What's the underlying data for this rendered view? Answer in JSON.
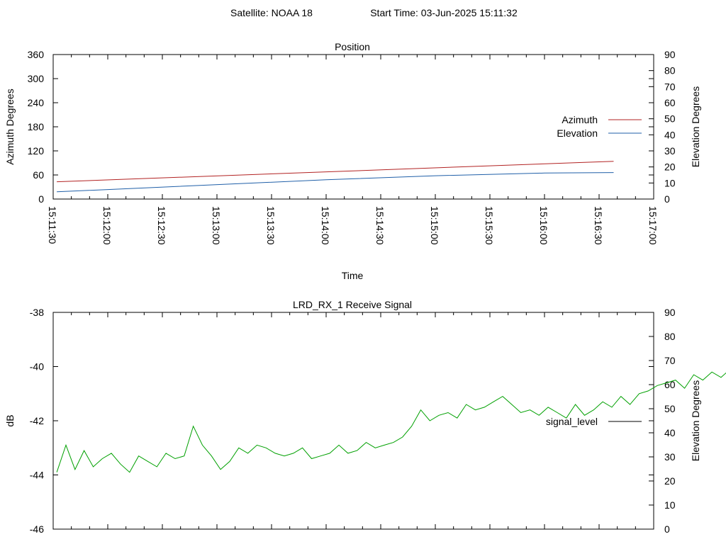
{
  "header": {
    "satellite": "Satellite: NOAA 18",
    "start_time": "Start Time: 03-Jun-2025 15:11:32"
  },
  "colors": {
    "azimuth": "#b22222",
    "elevation": "#1f5fa8",
    "signal": "#00a000",
    "legend_signal": "#000000"
  },
  "chart_data": [
    {
      "type": "line",
      "title": "Position",
      "xlabel": "Time",
      "ylabel": "Azimuth Degrees",
      "y2label": "Elevation Degrees",
      "ylim": [
        0,
        360
      ],
      "y2lim": [
        0,
        90
      ],
      "yticks": [
        "0",
        "60",
        "120",
        "180",
        "240",
        "300",
        "360"
      ],
      "y2ticks": [
        "0",
        "10",
        "20",
        "30",
        "40",
        "50",
        "60",
        "70",
        "80",
        "90"
      ],
      "xlim": [
        "15:11:30",
        "15:17:00"
      ],
      "xticks": [
        "15:11:30",
        "15:12:00",
        "15:12:30",
        "15:13:00",
        "15:13:30",
        "15:14:00",
        "15:14:30",
        "15:15:00",
        "15:15:30",
        "15:16:00",
        "15:16:30",
        "15:17:00"
      ],
      "legend_position": "right",
      "series": [
        {
          "name": "Azimuth",
          "axis": "y",
          "x": [
            "15:11:32",
            "15:16:38"
          ],
          "values": [
            43,
            94
          ]
        },
        {
          "name": "Elevation",
          "axis": "y2",
          "x": [
            "15:11:32",
            "15:14:00",
            "15:15:00",
            "15:16:00",
            "15:16:38"
          ],
          "values": [
            4.5,
            12,
            14.5,
            16.2,
            16.5
          ]
        }
      ]
    },
    {
      "type": "line",
      "title": "LRD_RX_1 Receive Signal",
      "ylabel": "dB",
      "y2label": "Elevation Degrees",
      "ylim": [
        -46,
        -38
      ],
      "y2lim": [
        0,
        90
      ],
      "yticks": [
        "-46",
        "-44",
        "-42",
        "-40",
        "-38"
      ],
      "y2ticks": [
        "0",
        "10",
        "20",
        "30",
        "40",
        "50",
        "60",
        "70",
        "80",
        "90"
      ],
      "xlim": [
        "15:11:30",
        "15:17:00"
      ],
      "legend_position": "right",
      "series": [
        {
          "name": "signal_level",
          "x_start": "15:11:32",
          "x_step_seconds": 5,
          "values": [
            -43.9,
            -42.9,
            -43.8,
            -43.1,
            -43.7,
            -43.4,
            -43.2,
            -43.6,
            -43.9,
            -43.3,
            -43.5,
            -43.7,
            -43.2,
            -43.4,
            -43.3,
            -42.2,
            -42.9,
            -43.3,
            -43.8,
            -43.5,
            -43.0,
            -43.2,
            -42.9,
            -43.0,
            -43.2,
            -43.3,
            -43.2,
            -43.0,
            -43.4,
            -43.3,
            -43.2,
            -42.9,
            -43.2,
            -43.1,
            -42.8,
            -43.0,
            -42.9,
            -42.8,
            -42.6,
            -42.2,
            -41.6,
            -42.0,
            -41.8,
            -41.7,
            -41.9,
            -41.4,
            -41.6,
            -41.5,
            -41.3,
            -41.1,
            -41.4,
            -41.7,
            -41.6,
            -41.8,
            -41.5,
            -41.7,
            -41.9,
            -41.4,
            -41.8,
            -41.6,
            -41.3,
            -41.5,
            -41.1,
            -41.4,
            -41.0,
            -40.9,
            -40.7,
            -40.6,
            -40.5,
            -40.8,
            -40.3,
            -40.5,
            -40.2,
            -40.4,
            -40.1,
            -40.5,
            -40.2,
            -40.3,
            -40.4,
            -40.1,
            -40.3,
            -40.6,
            -40.8,
            -41.2,
            -42.0,
            -42.6,
            -43.0,
            -42.8,
            -42.6,
            -42.2,
            -41.9,
            -42.3,
            -41.6,
            -41.0,
            -40.9,
            -40.6,
            -40.1,
            -40.3,
            -39.9,
            -39.7,
            -39.4,
            -39.1,
            -38.6,
            -38.4,
            -38.6,
            -38.3,
            -38.5,
            -38.5,
            -38.6,
            -38.7,
            -39.1,
            -38.9,
            -38.4,
            -38.0,
            -37.8,
            -37.7
          ]
        }
      ]
    }
  ]
}
